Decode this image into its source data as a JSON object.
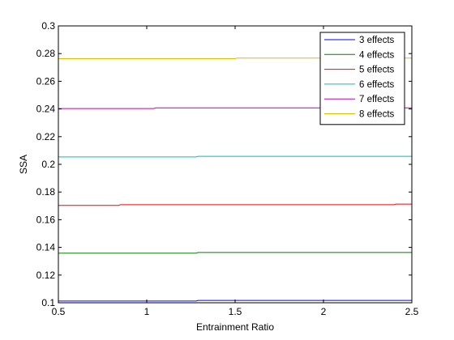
{
  "chart_data": {
    "type": "line",
    "title": "",
    "xlabel": "Entrainment Ratio",
    "ylabel": "SSA",
    "xlim": [
      0.5,
      2.5
    ],
    "ylim": [
      0.1,
      0.3
    ],
    "xticks": [
      0.5,
      1,
      1.5,
      2,
      2.5
    ],
    "xtick_labels": [
      "0.5",
      "1",
      "1.5",
      "2",
      "2.5"
    ],
    "yticks": [
      0.1,
      0.12,
      0.14,
      0.16,
      0.18,
      0.2,
      0.22,
      0.24,
      0.26,
      0.28,
      0.3
    ],
    "ytick_labels": [
      "0.1",
      "0.12",
      "0.14",
      "0.16",
      "0.18",
      "0.2",
      "0.22",
      "0.24",
      "0.26",
      "0.28",
      "0.3"
    ],
    "grid": false,
    "legend_position": "top-right",
    "series": [
      {
        "name": "3 effects",
        "color": "#0000ff",
        "x": [
          0.5,
          1.28,
          1.29,
          2.5
        ],
        "y": [
          0.1012,
          0.1012,
          0.1017,
          0.1017
        ]
      },
      {
        "name": "4 effects",
        "color": "#008000",
        "x": [
          0.5,
          1.28,
          1.29,
          2.5
        ],
        "y": [
          0.1358,
          0.1358,
          0.1363,
          0.1363
        ]
      },
      {
        "name": "5 effects",
        "color": "#ff0000",
        "x": [
          0.5,
          0.84,
          0.85,
          2.4,
          2.41,
          2.5
        ],
        "y": [
          0.1703,
          0.1703,
          0.1708,
          0.1708,
          0.1713,
          0.1713
        ]
      },
      {
        "name": "6 effects",
        "color": "#00bfbf",
        "x": [
          0.5,
          1.28,
          1.29,
          2.5
        ],
        "y": [
          0.2053,
          0.2053,
          0.2058,
          0.2058
        ]
      },
      {
        "name": "7 effects",
        "color": "#bf00bf",
        "x": [
          0.5,
          1.04,
          1.05,
          2.5
        ],
        "y": [
          0.2403,
          0.2403,
          0.2408,
          0.2408
        ]
      },
      {
        "name": "8 effects",
        "color": "#e6b800",
        "x": [
          0.5,
          1.5,
          1.51,
          2.5
        ],
        "y": [
          0.2763,
          0.2763,
          0.2768,
          0.2768
        ]
      }
    ]
  }
}
